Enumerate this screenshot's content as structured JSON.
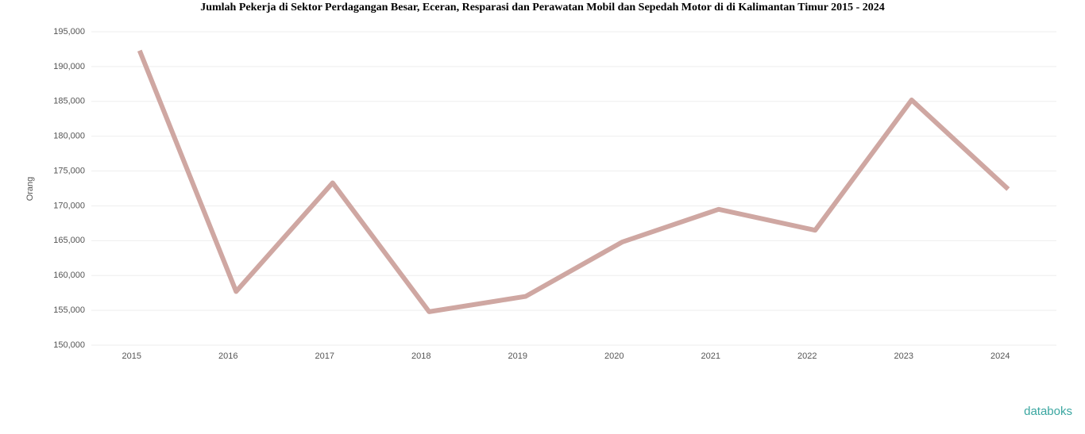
{
  "chart_data": {
    "type": "line",
    "title": "Jumlah Pekerja di Sektor Perdagangan Besar, Eceran, Resparasi dan Perawatan Mobil dan Sepedah Motor di di Kalimantan Timur 2015 - 2024",
    "y_label": "Orang",
    "categories": [
      "2015",
      "2016",
      "2017",
      "2018",
      "2019",
      "2020",
      "2021",
      "2022",
      "2023",
      "2024"
    ],
    "series": [
      {
        "name": "Jumlah Pekerja",
        "color": "#cfa7a2",
        "values": [
          192300,
          157700,
          173300,
          154800,
          157000,
          164800,
          169500,
          166500,
          185200,
          172400
        ]
      }
    ],
    "ylim": [
      150000,
      195000
    ],
    "yticks": [
      {
        "value": 150000,
        "label": "150,000"
      },
      {
        "value": 155000,
        "label": "155,000"
      },
      {
        "value": 160000,
        "label": "160,000"
      },
      {
        "value": 165000,
        "label": "165,000"
      },
      {
        "value": 170000,
        "label": "170,000"
      },
      {
        "value": 175000,
        "label": "175,000"
      },
      {
        "value": 180000,
        "label": "180,000"
      },
      {
        "value": 185000,
        "label": "185,000"
      },
      {
        "value": 190000,
        "label": "190,000"
      },
      {
        "value": 195000,
        "label": "195,000"
      }
    ],
    "grid": true,
    "watermark": "databoks"
  }
}
